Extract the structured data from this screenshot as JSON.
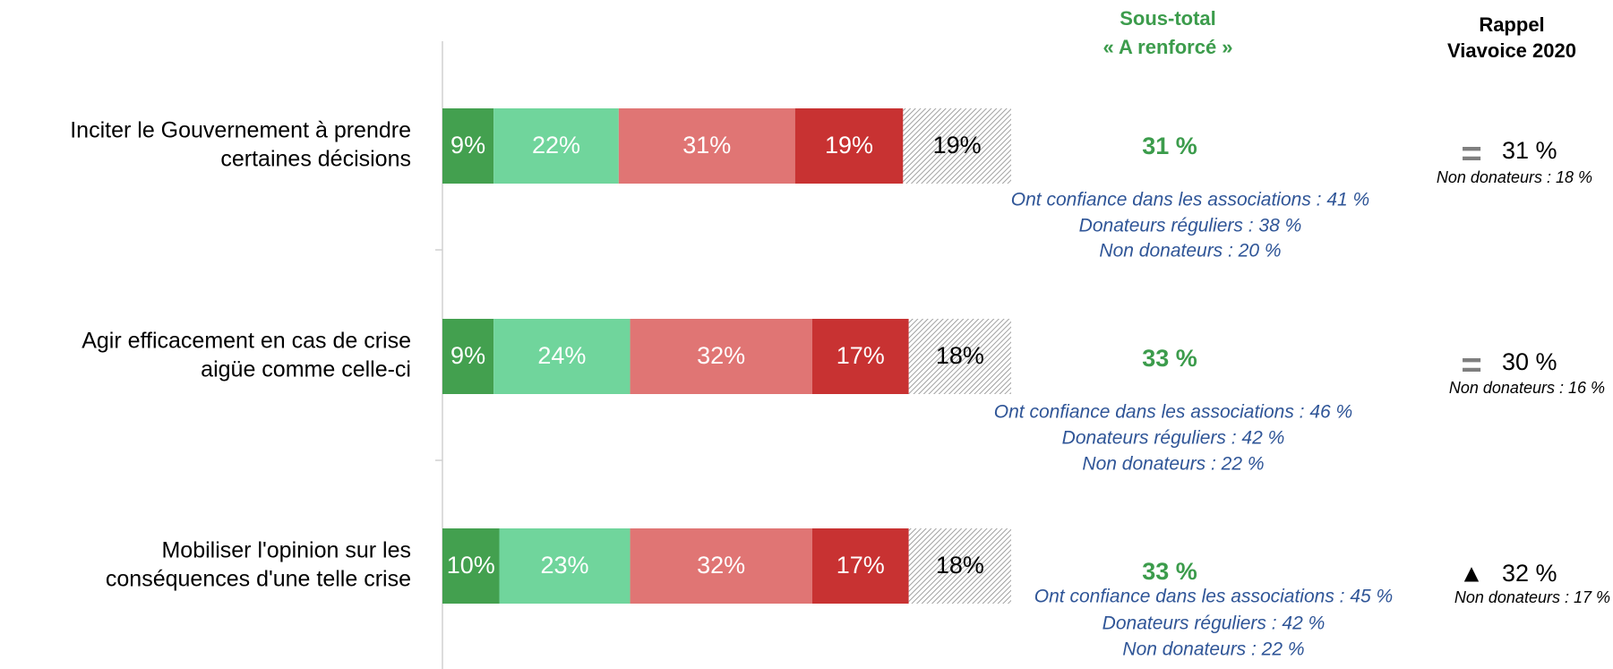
{
  "chart_data": {
    "type": "bar",
    "orientation": "horizontal",
    "categories": [
      [
        "Inciter le Gouvernement à prendre",
        "certaines décisions"
      ],
      [
        "Agir efficacement en cas de crise",
        "aigüe comme celle-ci"
      ],
      [
        "Mobiliser l'opinion sur les",
        "conséquences d'une telle crise"
      ]
    ],
    "series": [
      {
        "color": "#43a04f",
        "label_color": "#ffffff",
        "values": [
          9,
          9,
          10
        ],
        "value_labels": [
          "9%",
          "9%",
          "10%"
        ]
      },
      {
        "color": "#70d59c",
        "label_color": "#ffffff",
        "values": [
          22,
          24,
          23
        ],
        "value_labels": [
          "22%",
          "24%",
          "23%"
        ]
      },
      {
        "color": "#e07574",
        "label_color": "#ffffff",
        "values": [
          31,
          32,
          32
        ],
        "value_labels": [
          "31%",
          "32%",
          "32%"
        ]
      },
      {
        "color": "#c83232",
        "label_color": "#ffffff",
        "values": [
          19,
          17,
          17
        ],
        "value_labels": [
          "19%",
          "17%",
          "17%"
        ]
      },
      {
        "color": "#9a9a9a",
        "pattern": "hatch",
        "label_color": "#000000",
        "values": [
          19,
          18,
          18
        ],
        "value_labels": [
          "19%",
          "18%",
          "18%"
        ]
      }
    ],
    "subtotal": {
      "title": [
        "Sous-total",
        "« A renforcé »"
      ],
      "color": "#3c9c4c",
      "values": [
        31,
        33,
        33
      ],
      "value_labels": [
        "31 %",
        "33 %",
        "33 %"
      ],
      "notes": [
        [
          "Ont confiance dans les associations : 41 %",
          "Donateurs réguliers : 38 %",
          "Non donateurs : 20 %"
        ],
        [
          "Ont confiance dans les associations : 46 %",
          "Donateurs réguliers : 42 %",
          "Non donateurs : 22 %"
        ],
        [
          "Ont confiance dans les associations : 45 %",
          "Donateurs réguliers : 42 %",
          "Non donateurs : 22 %"
        ]
      ]
    },
    "rappel": {
      "title": [
        "Rappel",
        "Viavoice 2020"
      ],
      "trend": [
        "=",
        "=",
        "▲"
      ],
      "values": [
        31,
        30,
        32
      ],
      "value_labels": [
        "31 %",
        "30 %",
        "32 %"
      ],
      "notes": [
        "Non donateurs : 18 %",
        "Non donateurs : 16 %",
        "Non donateurs : 17 %"
      ]
    }
  }
}
